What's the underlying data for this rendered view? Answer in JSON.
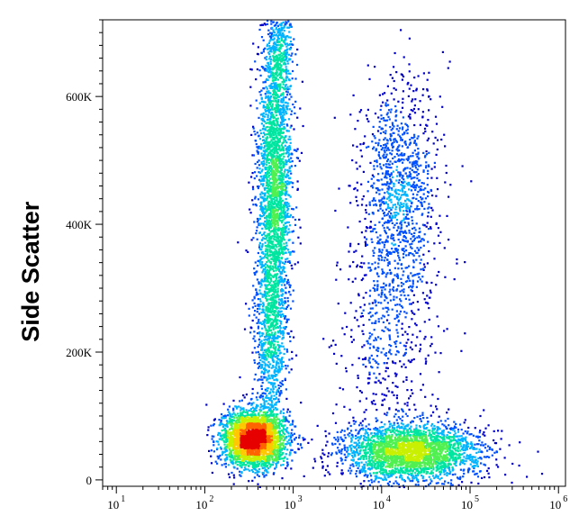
{
  "chart_data": {
    "type": "scatter",
    "title": "",
    "ylabel": "Side Scatter",
    "xlabel": "",
    "x_scale": "log",
    "xlim": [
      7,
      1200000
    ],
    "ylim": [
      -10000,
      720000
    ],
    "grid": false,
    "x_ticks": [
      {
        "value": 10,
        "base": "10",
        "exp": "1"
      },
      {
        "value": 100,
        "base": "10",
        "exp": "2"
      },
      {
        "value": 1000,
        "base": "10",
        "exp": "3"
      },
      {
        "value": 10000,
        "base": "10",
        "exp": "4"
      },
      {
        "value": 100000,
        "base": "10",
        "exp": "5"
      },
      {
        "value": 1000000,
        "base": "10",
        "exp": "6"
      }
    ],
    "y_ticks": [
      {
        "value": 0,
        "label": "0"
      },
      {
        "value": 200000,
        "label": "200K"
      },
      {
        "value": 400000,
        "label": "400K"
      },
      {
        "value": 600000,
        "label": "600K"
      }
    ],
    "density_colormap": [
      "#0000c8",
      "#0050ff",
      "#00b4ff",
      "#00e6a0",
      "#50f050",
      "#c8f000",
      "#ffc800",
      "#ff6400",
      "#e60000"
    ],
    "populations": [
      {
        "name": "",
        "x_center": 600,
        "y_center": 470000,
        "x_spread_decades": 0.1,
        "y_spread": 110000,
        "points": 2200
      },
      {
        "name": "",
        "x_center": 550,
        "y_center": 230000,
        "x_spread_decades": 0.09,
        "y_spread": 80000,
        "points": 900
      },
      {
        "name": "",
        "x_center": 700,
        "y_center": 680000,
        "x_spread_decades": 0.08,
        "y_spread": 40000,
        "points": 400
      },
      {
        "name": "",
        "x_center": 350,
        "y_center": 65000,
        "x_spread_decades": 0.18,
        "y_spread": 22000,
        "points": 2800
      },
      {
        "name": "",
        "x_center": 20000,
        "y_center": 45000,
        "x_spread_decades": 0.4,
        "y_spread": 22000,
        "points": 2600
      },
      {
        "name": "",
        "x_center": 15000,
        "y_center": 450000,
        "x_spread_decades": 0.22,
        "y_spread": 90000,
        "points": 1100
      },
      {
        "name": "",
        "x_center": 12000,
        "y_center": 220000,
        "x_spread_decades": 0.3,
        "y_spread": 100000,
        "points": 500
      }
    ]
  }
}
